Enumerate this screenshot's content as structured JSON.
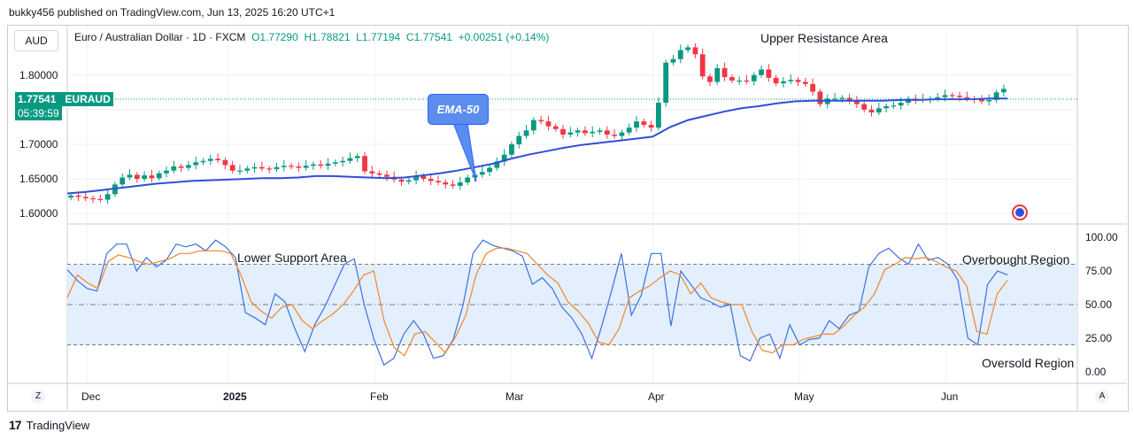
{
  "header": {
    "publisher": "bukky456 published on TradingView.com, Jun 13, 2025 16:20 UTC+1"
  },
  "currency_label": "AUD",
  "symbol": {
    "name": "Euro / Australian Dollar · 1D · FXCM",
    "open": "O1.77290",
    "high": "H1.78821",
    "low": "L1.77194",
    "close": "C1.77541",
    "change": "+0.00251 (+0.14%)"
  },
  "price_tag": {
    "price": "1.77541",
    "ticker": "EURAUD",
    "countdown": "05:39:59"
  },
  "annotations": {
    "upper_resistance": "Upper Resistance Area",
    "lower_support": "Lower Support Area",
    "overbought": "Overbought Region",
    "oversold": "Oversold Region",
    "ema_callout": "EMA-50"
  },
  "footer": {
    "brand": "TradingView"
  },
  "axis_buttons": {
    "left": "Z",
    "right": "A"
  },
  "colors": {
    "up": "#089981",
    "down": "#f23645",
    "ema": "#2f4fd6",
    "stoch_k": "#3d6fe0",
    "stoch_d": "#f2852b",
    "band": "#e3effd"
  },
  "chart_data": [
    {
      "type": "candlestick",
      "title": "Euro / Australian Dollar · 1D · FXCM",
      "y_ticks": [
        "1.60000",
        "1.65000",
        "1.70000",
        "1.75000",
        "1.80000"
      ],
      "ylim": [
        1.59,
        1.87
      ],
      "x_ticks": [
        "Dec",
        "2025",
        "Feb",
        "Mar",
        "Apr",
        "May",
        "Jun"
      ],
      "last_price": 1.77541,
      "close_series": [
        1.626,
        1.624,
        1.622,
        1.621,
        1.62,
        1.628,
        1.642,
        1.652,
        1.656,
        1.65,
        1.655,
        1.651,
        1.658,
        1.662,
        1.668,
        1.666,
        1.67,
        1.674,
        1.676,
        1.679,
        1.677,
        1.67,
        1.662,
        1.662,
        1.665,
        1.667,
        1.665,
        1.664,
        1.667,
        1.669,
        1.668,
        1.666,
        1.669,
        1.671,
        1.669,
        1.672,
        1.674,
        1.676,
        1.68,
        1.683,
        1.661,
        1.658,
        1.656,
        1.653,
        1.649,
        1.646,
        1.648,
        1.654,
        1.65,
        1.647,
        1.645,
        1.642,
        1.64,
        1.645,
        1.652,
        1.656,
        1.66,
        1.666,
        1.675,
        1.685,
        1.7,
        1.712,
        1.72,
        1.735,
        1.733,
        1.726,
        1.722,
        1.714,
        1.717,
        1.72,
        1.716,
        1.718,
        1.72,
        1.714,
        1.712,
        1.717,
        1.724,
        1.733,
        1.728,
        1.724,
        1.76,
        1.818,
        1.823,
        1.836,
        1.84,
        1.83,
        1.798,
        1.79,
        1.81,
        1.797,
        1.792,
        1.792,
        1.791,
        1.8,
        1.808,
        1.796,
        1.788,
        1.791,
        1.793,
        1.79,
        1.787,
        1.776,
        1.758,
        1.766,
        1.766,
        1.767,
        1.762,
        1.758,
        1.75,
        1.746,
        1.752,
        1.755,
        1.756,
        1.76,
        1.766,
        1.764,
        1.765,
        1.766,
        1.768,
        1.771,
        1.77,
        1.768,
        1.766,
        1.765,
        1.762,
        1.764,
        1.775,
        1.78
      ],
      "series": [
        {
          "name": "EMA-50",
          "values": [
            1.629,
            1.631,
            1.634,
            1.637,
            1.64,
            1.643,
            1.645,
            1.647,
            1.648,
            1.649,
            1.65,
            1.651,
            1.651,
            1.652,
            1.654,
            1.654,
            1.653,
            1.652,
            1.651,
            1.652,
            1.655,
            1.658,
            1.662,
            1.667,
            1.672,
            1.679,
            1.685,
            1.69,
            1.695,
            1.699,
            1.702,
            1.705,
            1.708,
            1.711,
            1.725,
            1.735,
            1.741,
            1.747,
            1.752,
            1.755,
            1.759,
            1.762,
            1.763,
            1.763,
            1.763,
            1.763,
            1.763,
            1.764,
            1.764,
            1.765,
            1.765,
            1.765,
            1.766,
            1.766
          ]
        }
      ]
    },
    {
      "type": "line",
      "title": "Stochastic",
      "y_ticks": [
        "0.00",
        "25.00",
        "50.00",
        "75.00",
        "100.00"
      ],
      "ylim": [
        -8,
        108
      ],
      "levels": [
        80,
        50,
        20
      ],
      "series": [
        {
          "name": "%K",
          "values": [
            76,
            68,
            62,
            60,
            88,
            95,
            95,
            75,
            85,
            78,
            83,
            95,
            93,
            95,
            90,
            98,
            93,
            85,
            44,
            40,
            35,
            58,
            52,
            32,
            15,
            35,
            48,
            64,
            80,
            84,
            50,
            24,
            5,
            10,
            28,
            38,
            28,
            10,
            12,
            24,
            50,
            88,
            98,
            94,
            92,
            90,
            86,
            65,
            70,
            62,
            48,
            40,
            28,
            10,
            34,
            60,
            88,
            42,
            57,
            88,
            88,
            34,
            75,
            65,
            55,
            52,
            48,
            50,
            12,
            8,
            25,
            28,
            10,
            35,
            20,
            24,
            25,
            38,
            32,
            42,
            45,
            78,
            88,
            92,
            85,
            80,
            95,
            83,
            85,
            80,
            68,
            25,
            20,
            65,
            75,
            72
          ]
        },
        {
          "name": "%D",
          "values": [
            55,
            72,
            66,
            62,
            82,
            87,
            85,
            82,
            80,
            82,
            84,
            88,
            88,
            90,
            90,
            90,
            88,
            72,
            52,
            45,
            40,
            48,
            50,
            38,
            32,
            38,
            43,
            50,
            60,
            72,
            75,
            38,
            18,
            12,
            28,
            30,
            22,
            14,
            26,
            42,
            72,
            88,
            92,
            92,
            90,
            88,
            80,
            72,
            66,
            52,
            45,
            36,
            22,
            20,
            32,
            55,
            60,
            64,
            70,
            75,
            72,
            58,
            66,
            55,
            52,
            50,
            50,
            30,
            16,
            14,
            20,
            20,
            24,
            26,
            28,
            28,
            34,
            42,
            48,
            58,
            76,
            80,
            85,
            84,
            85,
            82,
            78,
            75,
            64,
            30,
            28,
            58,
            68
          ]
        }
      ]
    }
  ]
}
